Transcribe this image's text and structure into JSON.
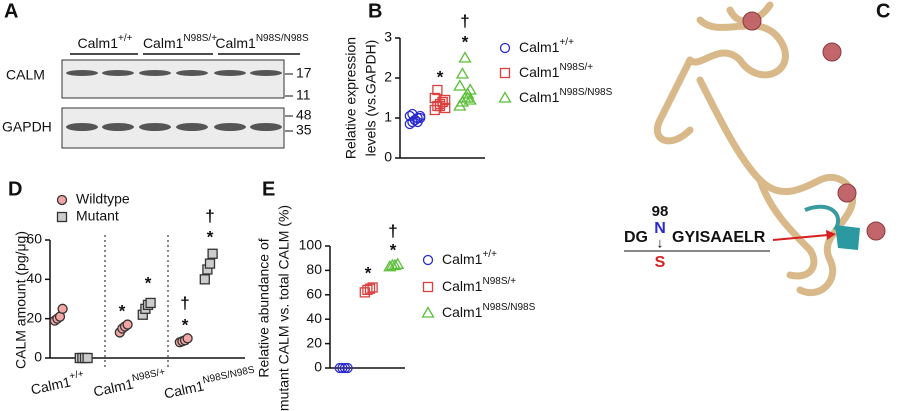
{
  "panels": {
    "A": {
      "label": "A",
      "lanes": [
        "Calm1+/+",
        "Calm1N98S/+",
        "Calm1N98S/N98S"
      ],
      "rows": [
        "CALM",
        "GAPDH"
      ],
      "markers": [
        17,
        11,
        48,
        35
      ]
    },
    "C": {
      "label": "C",
      "position": "98",
      "wildtype": "N",
      "mutant": "S",
      "prefix": "DG",
      "suffix": "GYISAAELR",
      "arrow": "↓"
    }
  },
  "chart_data": [
    {
      "type": "strip",
      "label": "B",
      "ylabel": [
        "Relative expression",
        "levels (vs.GAPDH)"
      ],
      "ylim": [
        0,
        3
      ],
      "yticks": [
        0,
        1,
        2,
        3
      ],
      "annotations": [
        "*",
        "*",
        "†"
      ],
      "series": [
        {
          "name": "Calm1+/+",
          "color": "#2a2ad0",
          "marker": "circle",
          "values": [
            0.85,
            0.9,
            0.95,
            1.0,
            1.0,
            1.05,
            1.1,
            0.95,
            0.9,
            1.05
          ]
        },
        {
          "name": "Calm1N98S/+",
          "color": "#d9413f",
          "marker": "square",
          "values": [
            1.2,
            1.3,
            1.35,
            1.4,
            1.45,
            1.5,
            1.7,
            1.3,
            1.4,
            1.25
          ]
        },
        {
          "name": "Calm1N98S/N98S",
          "color": "#5cbf3a",
          "marker": "triangle",
          "values": [
            1.3,
            1.4,
            1.5,
            1.6,
            1.7,
            1.8,
            2.1,
            2.5,
            1.5,
            1.45
          ]
        }
      ]
    },
    {
      "type": "strip",
      "label": "D",
      "ylabel": [
        "CALM amount (pg/μg)"
      ],
      "ylim": [
        0,
        60
      ],
      "yticks": [
        0,
        20,
        40,
        60
      ],
      "annotations": [
        "*",
        "*",
        "*",
        "†",
        "*",
        "†"
      ],
      "categories": [
        "Calm1+/+",
        "Calm1N98S/+",
        "Calm1N98S/N98S"
      ],
      "series": [
        {
          "name": "Wildtype",
          "color": "#f4a6a6",
          "marker": "circle",
          "values": [
            [
              19,
              20,
              21,
              25
            ],
            [
              13,
              15,
              16,
              17
            ],
            [
              8,
              8.5,
              9,
              10
            ]
          ]
        },
        {
          "name": "Mutant",
          "color": "#cccccc",
          "marker": "square",
          "values": [
            [
              0,
              0,
              0,
              0
            ],
            [
              22,
              25,
              27,
              28
            ],
            [
              40,
              45,
              48,
              53
            ]
          ]
        }
      ]
    },
    {
      "type": "strip",
      "label": "E",
      "ylabel": [
        "Relative abundance of",
        "mutant CALM vs. total CALM (%)"
      ],
      "ylim": [
        0,
        100
      ],
      "yticks": [
        0,
        20,
        40,
        60,
        80,
        100
      ],
      "annotations": [
        "*",
        "*",
        "†"
      ],
      "series": [
        {
          "name": "Calm1+/+",
          "color": "#2a2ad0",
          "marker": "circle",
          "values": [
            0,
            0,
            0,
            0
          ]
        },
        {
          "name": "Calm1N98S/+",
          "color": "#d9413f",
          "marker": "square",
          "values": [
            62,
            64,
            65,
            66
          ]
        },
        {
          "name": "Calm1N98S/N98S",
          "color": "#5cbf3a",
          "marker": "triangle",
          "values": [
            83,
            84,
            84,
            85
          ]
        }
      ]
    }
  ]
}
